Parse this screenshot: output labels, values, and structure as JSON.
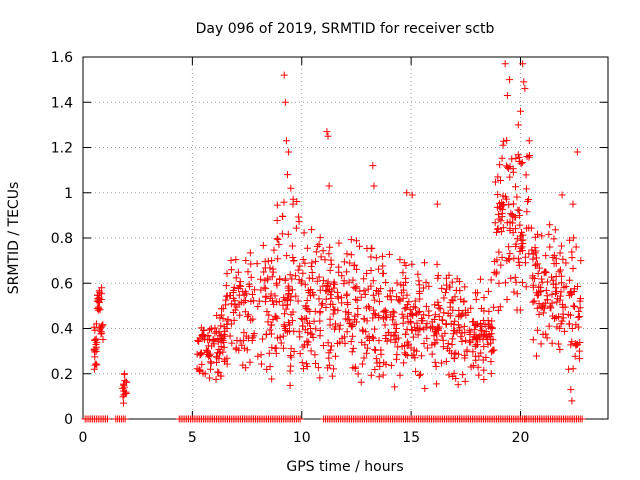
{
  "chart_data": {
    "type": "scatter",
    "title": "Day 096 of 2019, SRMTID for receiver sctb",
    "xlabel": "GPS time / hours",
    "ylabel": "SRMTID / TECUs",
    "xlim": [
      0,
      24
    ],
    "ylim": [
      0,
      1.6
    ],
    "xticks": [
      0,
      5,
      10,
      15,
      20
    ],
    "yticks": [
      0,
      0.2,
      0.4,
      0.6,
      0.8,
      1,
      1.2,
      1.4,
      1.6
    ],
    "ytick_labels": [
      "0",
      "0.2",
      "0.4",
      "0.6",
      "0.8",
      "1",
      "1.2",
      "1.4",
      "1.6"
    ],
    "grid": true,
    "marker": "+",
    "color": "#ff0000",
    "zero_value_segments": [
      [
        0.1,
        1.2
      ],
      [
        1.5,
        2.0
      ],
      [
        4.4,
        10.0
      ],
      [
        11.0,
        22.9
      ]
    ],
    "clusters": [
      {
        "x_range": [
          0.5,
          0.65
        ],
        "y_range": [
          0.2,
          0.45
        ],
        "count": 20
      },
      {
        "x_range": [
          0.65,
          0.85
        ],
        "y_range": [
          0.45,
          0.6
        ],
        "count": 18
      },
      {
        "x_range": [
          0.75,
          0.95
        ],
        "y_range": [
          0.35,
          0.45
        ],
        "count": 10
      },
      {
        "x_range": [
          1.8,
          2.0
        ],
        "y_range": [
          0.07,
          0.2
        ],
        "count": 14
      },
      {
        "x_range": [
          5.2,
          6.5
        ],
        "y_range": [
          0.15,
          0.5
        ],
        "count": 90
      },
      {
        "x_range": [
          6.5,
          8.5
        ],
        "y_range": [
          0.2,
          0.8
        ],
        "count": 110
      },
      {
        "x_range": [
          8.5,
          10.0
        ],
        "y_range": [
          0.1,
          1.0
        ],
        "count": 110
      },
      {
        "x_range": [
          10.0,
          12.0
        ],
        "y_range": [
          0.15,
          0.85
        ],
        "count": 140
      },
      {
        "x_range": [
          12.0,
          13.8
        ],
        "y_range": [
          0.1,
          0.85
        ],
        "count": 120
      },
      {
        "x_range": [
          13.8,
          15.5
        ],
        "y_range": [
          0.12,
          0.75
        ],
        "count": 120
      },
      {
        "x_range": [
          15.5,
          17.5
        ],
        "y_range": [
          0.1,
          0.7
        ],
        "count": 130
      },
      {
        "x_range": [
          17.5,
          18.8
        ],
        "y_range": [
          0.15,
          0.65
        ],
        "count": 90
      },
      {
        "x_range": [
          18.8,
          20.5
        ],
        "y_range": [
          0.45,
          1.25
        ],
        "count": 120
      },
      {
        "x_range": [
          20.5,
          22.0
        ],
        "y_range": [
          0.25,
          0.9
        ],
        "count": 110
      },
      {
        "x_range": [
          22.0,
          22.8
        ],
        "y_range": [
          0.1,
          0.9
        ],
        "count": 45
      }
    ],
    "notable_points": [
      {
        "x": 0.85,
        "y": 0.58
      },
      {
        "x": 1.9,
        "y": 0.2
      },
      {
        "x": 1.85,
        "y": 0.07
      },
      {
        "x": 9.2,
        "y": 1.52
      },
      {
        "x": 9.25,
        "y": 1.4
      },
      {
        "x": 9.3,
        "y": 1.23
      },
      {
        "x": 9.4,
        "y": 1.18
      },
      {
        "x": 9.35,
        "y": 1.08
      },
      {
        "x": 9.5,
        "y": 1.02
      },
      {
        "x": 9.6,
        "y": 0.95
      },
      {
        "x": 11.15,
        "y": 1.27
      },
      {
        "x": 11.2,
        "y": 1.25
      },
      {
        "x": 11.25,
        "y": 1.03
      },
      {
        "x": 13.25,
        "y": 1.12
      },
      {
        "x": 13.3,
        "y": 1.03
      },
      {
        "x": 14.8,
        "y": 1.0
      },
      {
        "x": 15.05,
        "y": 0.99
      },
      {
        "x": 16.2,
        "y": 0.95
      },
      {
        "x": 19.3,
        "y": 1.57
      },
      {
        "x": 19.5,
        "y": 1.5
      },
      {
        "x": 19.4,
        "y": 1.43
      },
      {
        "x": 20.1,
        "y": 1.57
      },
      {
        "x": 20.15,
        "y": 1.49
      },
      {
        "x": 20.2,
        "y": 1.46
      },
      {
        "x": 20.0,
        "y": 1.36
      },
      {
        "x": 19.9,
        "y": 1.3
      },
      {
        "x": 19.2,
        "y": 1.21
      },
      {
        "x": 20.4,
        "y": 1.23
      },
      {
        "x": 19.6,
        "y": 1.15
      },
      {
        "x": 20.3,
        "y": 1.16
      },
      {
        "x": 22.6,
        "y": 1.18
      },
      {
        "x": 21.9,
        "y": 0.99
      },
      {
        "x": 22.4,
        "y": 0.95
      },
      {
        "x": 22.2,
        "y": 0.22
      },
      {
        "x": 22.3,
        "y": 0.13
      },
      {
        "x": 22.35,
        "y": 0.08
      },
      {
        "x": 22.7,
        "y": 0.3
      },
      {
        "x": 20.2,
        "y": 0.0
      }
    ]
  }
}
